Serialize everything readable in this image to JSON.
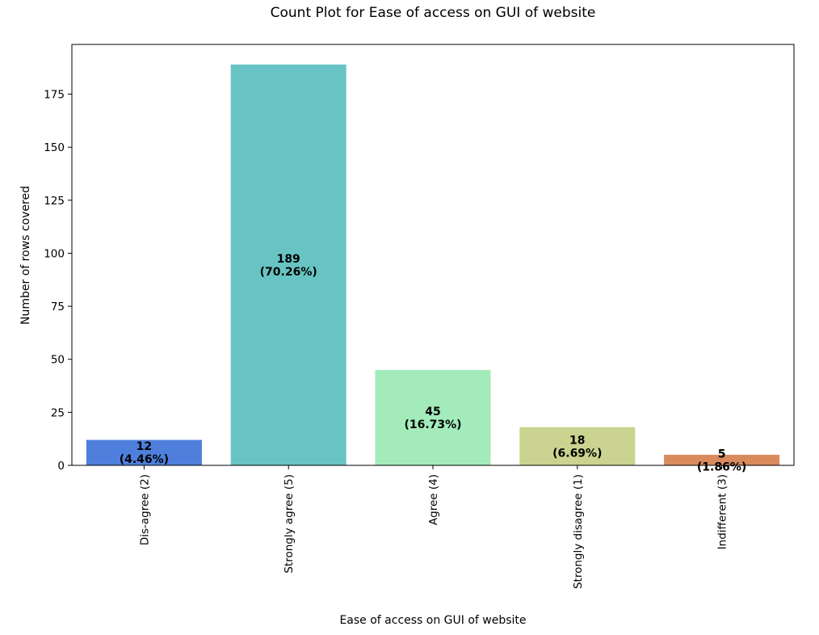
{
  "chart_data": {
    "type": "bar",
    "title": "Count Plot for Ease of access on GUI of website",
    "xlabel": "Ease of access on GUI of website",
    "ylabel": "Number of rows covered",
    "categories": [
      "Dis-agree (2)",
      "Strongly agree (5)",
      "Agree (4)",
      "Strongly disagree (1)",
      "Indifferent (3)"
    ],
    "values": [
      12,
      189,
      45,
      18,
      5
    ],
    "data_labels": [
      [
        "12",
        "(4.46%)"
      ],
      [
        "189",
        "(70.26%)"
      ],
      [
        "45",
        "(16.73%)"
      ],
      [
        "18",
        "(6.69%)"
      ],
      [
        "5",
        "(1.86%)"
      ]
    ],
    "colors": [
      "#4f7fdc",
      "#68c4c4",
      "#a3ebbb",
      "#cad38f",
      "#d98b5e"
    ],
    "yticks": [
      0,
      25,
      50,
      75,
      100,
      125,
      150,
      175
    ],
    "ylim": [
      0,
      198.45
    ],
    "grid": false,
    "legend": "none"
  }
}
